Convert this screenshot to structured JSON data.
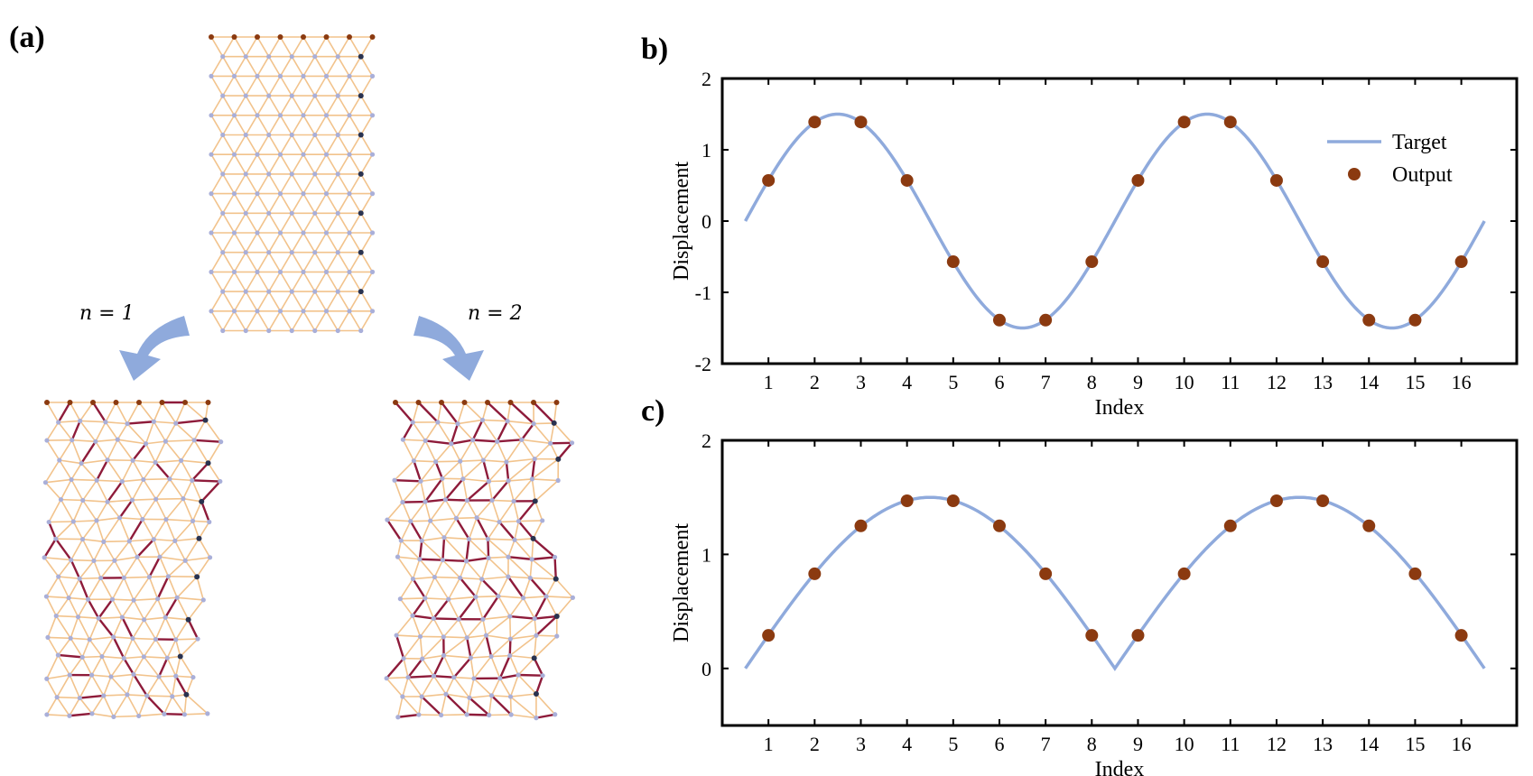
{
  "panel_a": {
    "label": "(a)",
    "arrow_left_label": "n = 1",
    "arrow_right_label": "n = 2",
    "colors": {
      "edge": "#F2C38C",
      "node": "#A9AFD9",
      "fixed_node": "#8B3A10",
      "boundary_node": "#2A3350",
      "stiff_edge": "#8E1B3A",
      "arrow": "#8FAADC"
    }
  },
  "chart_data": [
    {
      "type": "line",
      "panel_label": "b)",
      "title": "",
      "xlabel": "Index",
      "ylabel": "Displacement",
      "xlim": [
        0,
        17.2
      ],
      "ylim": [
        -2,
        2
      ],
      "xticks": [
        "1",
        "2",
        "3",
        "4",
        "5",
        "6",
        "7",
        "8",
        "9",
        "10",
        "11",
        "12",
        "13",
        "14",
        "15",
        "16"
      ],
      "yticks": [
        "-2",
        "-1",
        "0",
        "1",
        "2"
      ],
      "legend": {
        "position": "top-right",
        "entries": [
          "Target",
          "Output"
        ]
      },
      "series": [
        {
          "name": "Target",
          "kind": "curve",
          "function": "1.5*sin(pi*(x-0.5)/4)",
          "x_range": [
            0.5,
            16.5
          ],
          "color": "#8FAADC"
        },
        {
          "name": "Output",
          "kind": "scatter",
          "color": "#8B3A10",
          "x": [
            1,
            2,
            3,
            4,
            5,
            6,
            7,
            8,
            9,
            10,
            11,
            12,
            13,
            14,
            15,
            16
          ],
          "y": [
            0.57,
            1.39,
            1.39,
            0.57,
            -0.57,
            -1.39,
            -1.39,
            -0.57,
            0.57,
            1.39,
            1.39,
            0.57,
            -0.57,
            -1.39,
            -1.39,
            -0.57
          ]
        }
      ]
    },
    {
      "type": "line",
      "panel_label": "c)",
      "title": "",
      "xlabel": "Index",
      "ylabel": "Displacement",
      "xlim": [
        0,
        17.2
      ],
      "ylim": [
        -0.5,
        2
      ],
      "xticks": [
        "1",
        "2",
        "3",
        "4",
        "5",
        "6",
        "7",
        "8",
        "9",
        "10",
        "11",
        "12",
        "13",
        "14",
        "15",
        "16"
      ],
      "yticks": [
        "0",
        "1",
        "2"
      ],
      "series": [
        {
          "name": "Target",
          "kind": "curve",
          "function": "1.5*abs(sin(pi*(x-0.5)/8))",
          "x_range": [
            0.5,
            16.5
          ],
          "color": "#8FAADC"
        },
        {
          "name": "Output",
          "kind": "scatter",
          "color": "#8B3A10",
          "x": [
            1,
            2,
            3,
            4,
            5,
            6,
            7,
            8,
            9,
            10,
            11,
            12,
            13,
            14,
            15,
            16
          ],
          "y": [
            0.29,
            0.83,
            1.25,
            1.47,
            1.47,
            1.25,
            0.83,
            0.29,
            0.29,
            0.83,
            1.25,
            1.47,
            1.47,
            1.25,
            0.83,
            0.29
          ]
        }
      ]
    }
  ]
}
